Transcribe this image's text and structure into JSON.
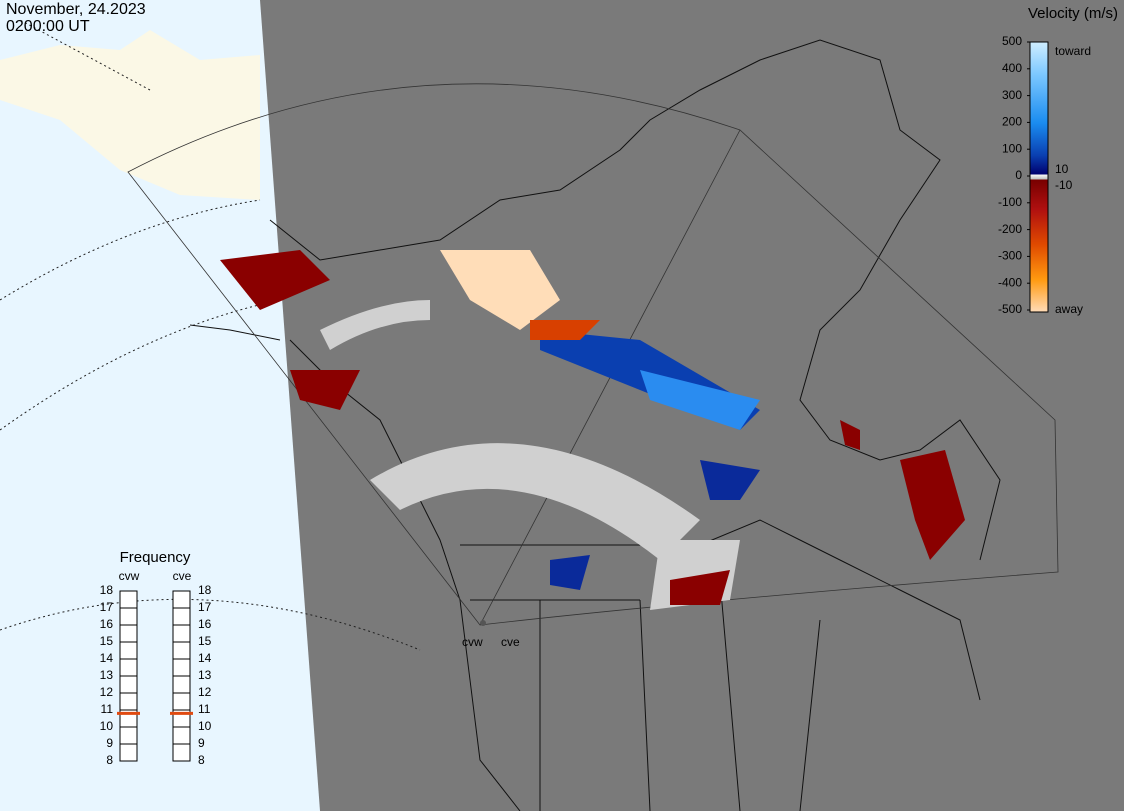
{
  "header": {
    "date": "November, 24.2023",
    "time": "0200:00 UT"
  },
  "velocity_scale": {
    "title": "Velocity (m/s)",
    "ticks": [
      500,
      400,
      300,
      200,
      100,
      0,
      -100,
      -200,
      -300,
      -400,
      -500
    ],
    "inner_ticks": [
      10,
      -10
    ],
    "toward": "toward",
    "away": "away"
  },
  "frequency": {
    "title": "Frequency",
    "ticks": [
      18,
      17,
      16,
      15,
      14,
      13,
      12,
      11,
      10,
      9,
      8
    ],
    "radars": [
      {
        "name": "cvw",
        "value": 10.8
      },
      {
        "name": "cve",
        "value": 10.8
      }
    ]
  },
  "map_labels": [
    "cvw",
    "cve"
  ]
}
